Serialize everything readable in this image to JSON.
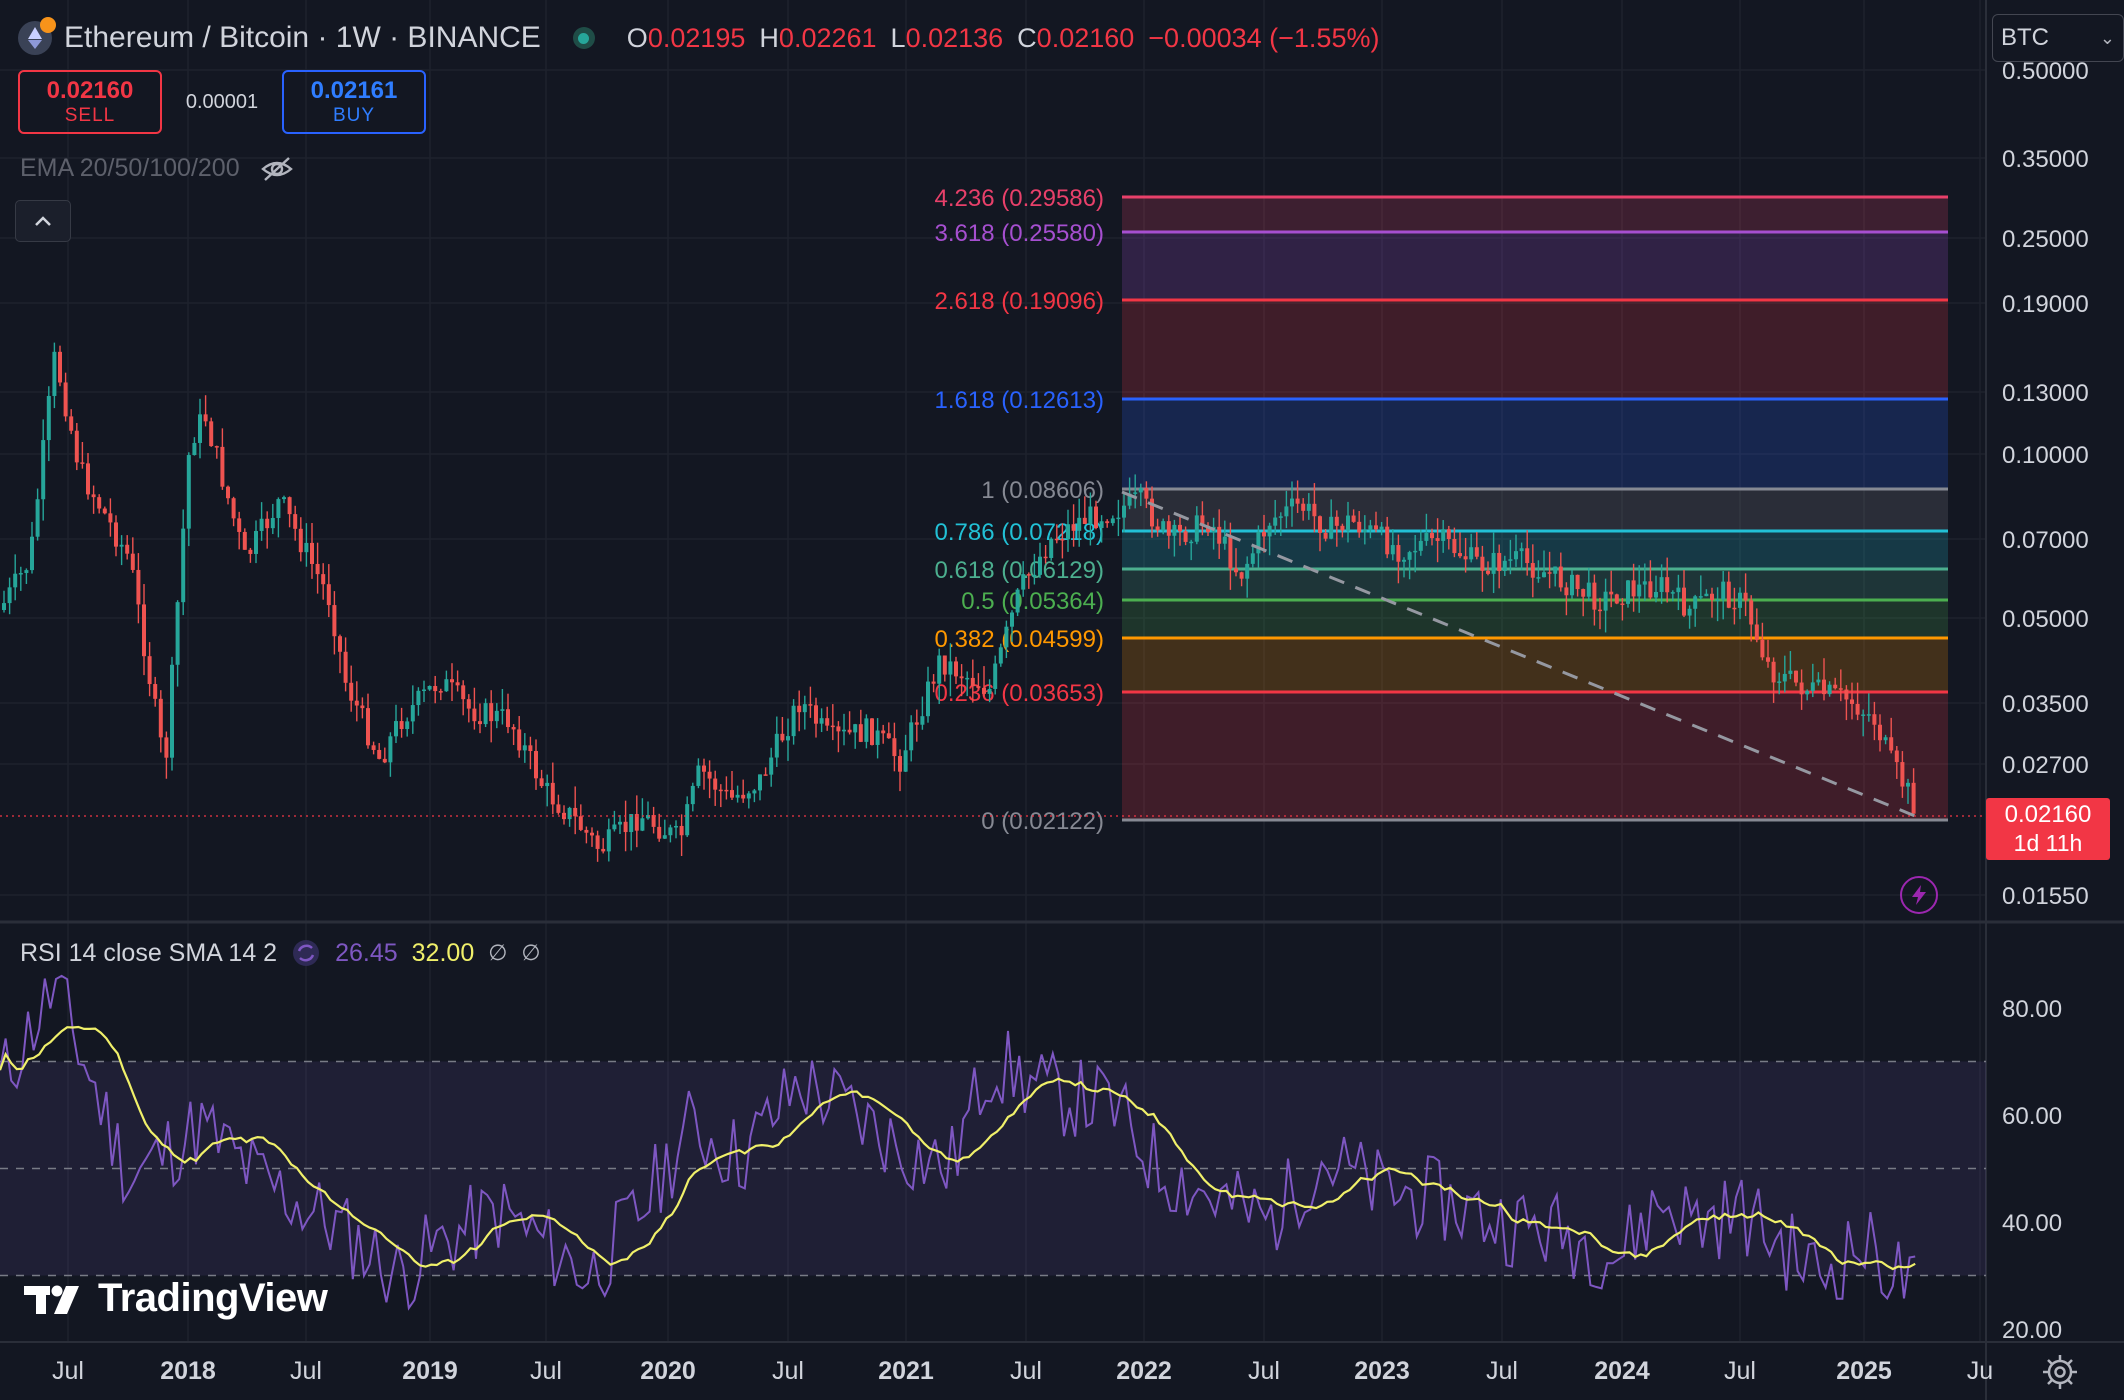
{
  "header": {
    "symbol_title": "Ethereum / Bitcoin · 1W · BINANCE",
    "ohlc": [
      {
        "key": "O",
        "value": "0.02195"
      },
      {
        "key": "H",
        "value": "0.02261"
      },
      {
        "key": "L",
        "value": "0.02136"
      },
      {
        "key": "C",
        "value": "0.02160"
      },
      {
        "key": "",
        "value": "−0.00034 (−1.55%)"
      }
    ],
    "sell_price": "0.02160",
    "sell_label": "SELL",
    "spread": "0.00001",
    "buy_price": "0.02161",
    "buy_label": "BUY",
    "ema_label": "EMA 20/50/100/200",
    "currency": "BTC"
  },
  "price_axis": {
    "labels": [
      "0.50000",
      "0.35000",
      "0.25000",
      "0.19000",
      "0.13000",
      "0.10000",
      "0.07000",
      "0.05000",
      "0.03500",
      "0.02700",
      "0.01550"
    ],
    "last_price": "0.02160",
    "countdown": "1d 11h"
  },
  "rsi_panel": {
    "name": "RSI 14 close SMA 14 2",
    "rsi_value": "26.45",
    "ma_value": "32.00",
    "sym1": "∅",
    "sym2": "∅",
    "axis_labels": [
      "80.00",
      "60.00",
      "40.00",
      "20.00"
    ]
  },
  "time_axis": [
    "Jul",
    "2018",
    "Jul",
    "2019",
    "Jul",
    "2020",
    "Jul",
    "2021",
    "Jul",
    "2022",
    "Jul",
    "2023",
    "Jul",
    "2024",
    "Jul",
    "2025",
    "Ju"
  ],
  "fib_levels": [
    {
      "label": "4.236 (0.29586)",
      "color": "#e8406a"
    },
    {
      "label": "3.618 (0.25580)",
      "color": "#a64fd0"
    },
    {
      "label": "2.618 (0.19096)",
      "color": "#f23645"
    },
    {
      "label": "1.618 (0.12613)",
      "color": "#2962ff"
    },
    {
      "label": "1 (0.08606)",
      "color": "#868993"
    },
    {
      "label": "0.786 (0.07218)",
      "color": "#22c1d6"
    },
    {
      "label": "0.618 (0.06129)",
      "color": "#4caf8f"
    },
    {
      "label": "0.5 (0.05364)",
      "color": "#4caf50"
    },
    {
      "label": "0.382 (0.04599)",
      "color": "#ff9800"
    },
    {
      "label": "0.236 (0.03653)",
      "color": "#f23645"
    },
    {
      "label": "0 (0.02122)",
      "color": "#868993"
    }
  ],
  "branding": {
    "logo_text": "TradingView"
  },
  "colors": {
    "up": "#26a69a",
    "down": "#ef5350",
    "rsi": "#7e57c2",
    "rsi_ma": "#f0f06a",
    "background": "#131722"
  }
}
